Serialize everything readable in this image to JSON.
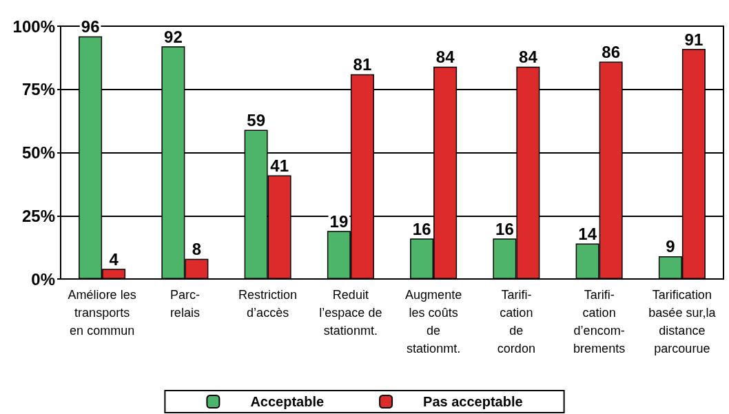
{
  "chart_data": {
    "type": "bar",
    "categories": [
      "Améliore les\ntransports\nen commun",
      "Parc-\nrelais",
      "Restriction\nd’accès",
      "Reduit\nl’espace de\nstationmt.",
      "Augmente\nles coûts\nde\nstationmt.",
      "Tarifi-\ncation\nde\ncordon",
      "Tarifi-\ncation\nd’encom-\nbrements",
      "Tarification\nbasée sur,la\ndistance\nparcourue"
    ],
    "series": [
      {
        "name": "Acceptable",
        "color": "#4cb56a",
        "values": [
          96,
          92,
          59,
          19,
          16,
          16,
          14,
          9
        ]
      },
      {
        "name": "Pas acceptable",
        "color": "#dd2a2a",
        "values": [
          4,
          8,
          41,
          81,
          84,
          84,
          86,
          91
        ]
      }
    ],
    "ylim": [
      0,
      100
    ],
    "yticks": [
      {
        "value": 0,
        "label": "0%"
      },
      {
        "value": 25,
        "label": "25%"
      },
      {
        "value": 50,
        "label": "50%"
      },
      {
        "value": 75,
        "label": "75%"
      },
      {
        "value": 100,
        "label": "100%"
      }
    ],
    "grid": "y",
    "legend": "bottom",
    "data_labels": true
  }
}
